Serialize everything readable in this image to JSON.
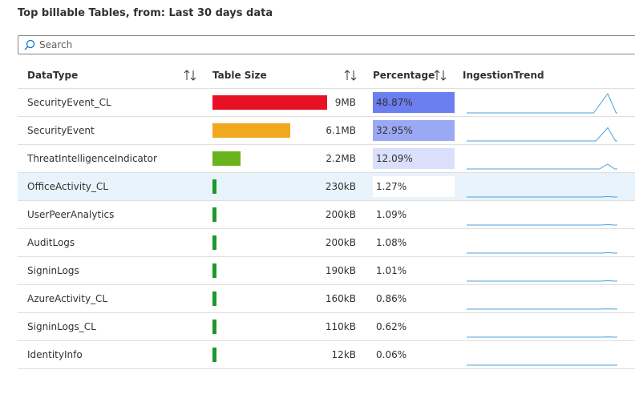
{
  "title": "Top billable Tables, from: Last 30 days data",
  "search_placeholder": "Search",
  "columns": [
    "DataType",
    "Table Size",
    "Percentage",
    "IngestionTrend"
  ],
  "selected_row": 3,
  "rows": [
    {
      "datatype": "SecurityEvent_CL",
      "size": "9MB",
      "percentage": {
        "value": 48.87,
        "label": "48.87%"
      },
      "color": "#e81123"
    },
    {
      "datatype": "SecurityEvent",
      "size": "6.1MB",
      "percentage": {
        "value": 32.95,
        "label": "32.95%"
      },
      "color": "#f2a81d"
    },
    {
      "datatype": "ThreatIntelligenceIndicator",
      "size": "2.2MB",
      "percentage": {
        "value": 12.09,
        "label": "12.09%"
      },
      "color": "#6bb31d"
    },
    {
      "datatype": "OfficeActivity_CL",
      "size": "230kB",
      "percentage": {
        "value": 1.27,
        "label": "1.27%"
      },
      "color": "#1b9a2b"
    },
    {
      "datatype": "UserPeerAnalytics",
      "size": "200kB",
      "percentage": {
        "value": 1.09,
        "label": "1.09%"
      },
      "color": "#1b9a2b"
    },
    {
      "datatype": "AuditLogs",
      "size": "200kB",
      "percentage": {
        "value": 1.08,
        "label": "1.08%"
      },
      "color": "#1b9a2b"
    },
    {
      "datatype": "SigninLogs",
      "size": "190kB",
      "percentage": {
        "value": 1.01,
        "label": "1.01%"
      },
      "color": "#1b9a2b"
    },
    {
      "datatype": "AzureActivity_CL",
      "size": "160kB",
      "percentage": {
        "value": 0.86,
        "label": "0.86%"
      },
      "color": "#1b9a2b"
    },
    {
      "datatype": "SigninLogs_CL",
      "size": "110kB",
      "percentage": {
        "value": 0.62,
        "label": "0.62%"
      },
      "color": "#1b9a2b"
    },
    {
      "datatype": "IdentityInfo",
      "size": "12kB",
      "percentage": {
        "value": 0.06,
        "label": "0.06%"
      },
      "color": "#1b9a2b"
    }
  ]
}
